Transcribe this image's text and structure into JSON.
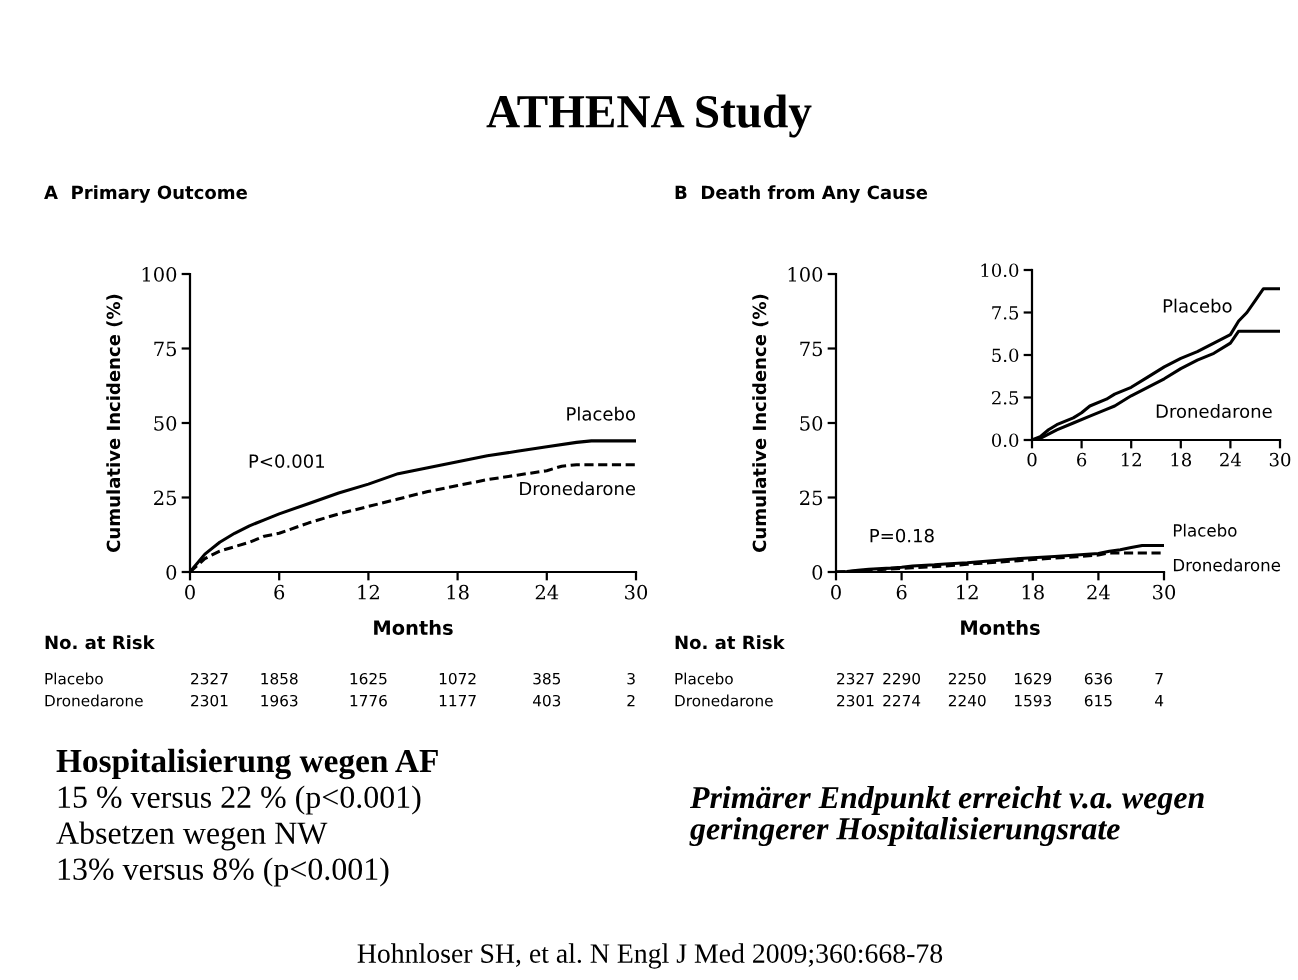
{
  "chart_data": [
    {
      "type": "other",
      "title": "ATHENA Study",
      "annotations": [
        "Hospitalisierung wegen AF",
        "15 % versus 22 % (p<0.001)",
        "Absetzen wegen NW",
        "13% versus 8% (p<0.001)",
        "Primärer Endpunkt erreicht v.a. wegen geringerer Hospitalisierungsrate",
        "Hohnloser SH, et al. N Engl J Med 2009;360:668-78"
      ]
    },
    {
      "type": "line",
      "title": "A  Primary Outcome",
      "xlabel": "Months",
      "ylabel": "Cumulative Incidence (%)",
      "xlim": [
        0,
        30
      ],
      "ylim": [
        0,
        100
      ],
      "xticks": [
        0,
        6,
        12,
        18,
        24,
        30
      ],
      "yticks": [
        0,
        25,
        50,
        75,
        100
      ],
      "grid": false,
      "legend": false,
      "series": [
        {
          "name": "Placebo",
          "color": "#000000",
          "line_style": "solid",
          "x": [
            0,
            1,
            2,
            3,
            4,
            5,
            6,
            8,
            10,
            12,
            14,
            16,
            18,
            20,
            22,
            24,
            26,
            27,
            30
          ],
          "values": [
            0,
            6,
            10,
            13,
            15.5,
            17.5,
            19.5,
            23,
            26.5,
            29.5,
            33,
            35,
            37,
            39,
            40.5,
            42,
            43.5,
            44,
            44
          ]
        },
        {
          "name": "Dronedarone",
          "color": "#000000",
          "line_style": "dashed",
          "x": [
            0,
            1,
            2,
            3,
            4,
            5,
            6,
            8,
            10,
            12,
            14,
            16,
            18,
            20,
            22,
            24,
            25,
            26,
            30
          ],
          "values": [
            0,
            4.5,
            7,
            8.5,
            10,
            12,
            13,
            16.5,
            19.5,
            22,
            24.5,
            27,
            29,
            31,
            32.5,
            34,
            35.5,
            36,
            36
          ]
        }
      ],
      "annotations": [
        "P<0.001",
        "No. at Risk",
        "Placebo",
        "2327",
        "1858",
        "1625",
        "1072",
        "385",
        "3",
        "Dronedarone",
        "2301",
        "1963",
        "1776",
        "1177",
        "403",
        "2"
      ]
    },
    {
      "type": "line",
      "title": "B  Death from Any Cause",
      "xlabel": "Months",
      "ylabel": "Cumulative Incidence (%)",
      "xlim": [
        0,
        30
      ],
      "ylim": [
        0,
        100
      ],
      "xticks": [
        0,
        6,
        12,
        18,
        24,
        30
      ],
      "yticks": [
        0,
        25,
        50,
        75,
        100
      ],
      "grid": false,
      "legend": false,
      "series": [
        {
          "name": "Placebo",
          "color": "#000000",
          "line_style": "solid",
          "x": [
            0,
            1,
            2,
            3,
            5,
            6,
            7,
            9,
            10,
            12,
            14,
            16,
            18,
            20,
            22,
            24,
            25,
            26,
            27,
            28,
            30
          ],
          "values": [
            0,
            0.2,
            0.6,
            0.9,
            1.3,
            1.6,
            2.0,
            2.4,
            2.7,
            3.1,
            3.7,
            4.3,
            4.8,
            5.2,
            5.7,
            6.2,
            7.0,
            7.5,
            8.2,
            8.9,
            8.9
          ]
        },
        {
          "name": "Dronedarone",
          "color": "#000000",
          "line_style": "dashed",
          "x": [
            0,
            1,
            3,
            5,
            7,
            9,
            10,
            12,
            14,
            16,
            18,
            20,
            22,
            24,
            25,
            30
          ],
          "values": [
            0,
            0.1,
            0.6,
            1.0,
            1.4,
            1.8,
            2.0,
            2.6,
            3.1,
            3.6,
            4.2,
            4.7,
            5.1,
            5.7,
            6.4,
            6.4
          ]
        }
      ],
      "annotations": [
        "P=0.18",
        "No. at Risk",
        "Placebo",
        "2327",
        "2290",
        "2250",
        "1629",
        "636",
        "7",
        "Dronedarone",
        "2301",
        "2274",
        "2240",
        "1593",
        "615",
        "4"
      ]
    },
    {
      "type": "line",
      "xlim": [
        0,
        30
      ],
      "ylim": [
        0,
        10
      ],
      "xticks": [
        0,
        6,
        12,
        18,
        24,
        30
      ],
      "yticks": [
        {
          "value": 0,
          "label": "0.0"
        },
        {
          "value": 2.5,
          "label": "2.5"
        },
        {
          "value": 5,
          "label": "5.0"
        },
        {
          "value": 7.5,
          "label": "7.5"
        },
        {
          "value": 10,
          "label": "10.0"
        }
      ],
      "grid": false,
      "legend": false,
      "series": [
        {
          "name": "Placebo",
          "color": "#000000",
          "line_style": "solid",
          "x": [
            0,
            1,
            2,
            3,
            5,
            6,
            7,
            9,
            10,
            12,
            14,
            16,
            18,
            20,
            22,
            24,
            25,
            26,
            27,
            28,
            30
          ],
          "values": [
            0,
            0.2,
            0.6,
            0.9,
            1.3,
            1.6,
            2.0,
            2.4,
            2.7,
            3.1,
            3.7,
            4.3,
            4.8,
            5.2,
            5.7,
            6.2,
            7.0,
            7.5,
            8.2,
            8.9,
            8.9
          ]
        },
        {
          "name": "Dronedarone",
          "color": "#000000",
          "line_style": "solid",
          "x": [
            0,
            1,
            3,
            5,
            7,
            9,
            10,
            12,
            14,
            16,
            18,
            20,
            22,
            24,
            25,
            30
          ],
          "values": [
            0,
            0.1,
            0.6,
            1.0,
            1.4,
            1.8,
            2.0,
            2.6,
            3.1,
            3.6,
            4.2,
            4.7,
            5.1,
            5.7,
            6.4,
            6.4
          ]
        }
      ]
    }
  ]
}
